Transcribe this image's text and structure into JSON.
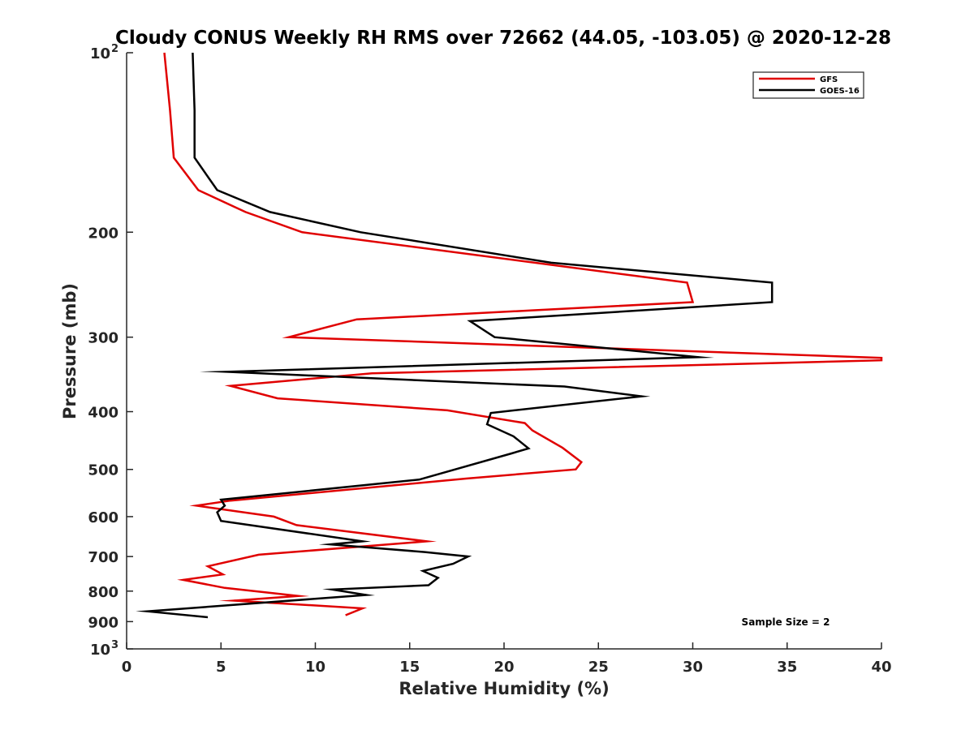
{
  "chart_data": {
    "type": "line",
    "title": "Cloudy CONUS Weekly RH RMS over 72662 (44.05, -103.05) @ 2020-12-28",
    "xlabel": "Relative Humidity (%)",
    "ylabel": "Pressure (mb)",
    "xlim": [
      0,
      40
    ],
    "ylim": [
      100,
      1000
    ],
    "y_scale": "log",
    "y_reversed": true,
    "grid": false,
    "legend_position": "top-right",
    "x_ticks": [
      {
        "value": 0,
        "label": "0"
      },
      {
        "value": 5,
        "label": "5"
      },
      {
        "value": 10,
        "label": "10"
      },
      {
        "value": 15,
        "label": "15"
      },
      {
        "value": 20,
        "label": "20"
      },
      {
        "value": 25,
        "label": "25"
      },
      {
        "value": 30,
        "label": "30"
      },
      {
        "value": 35,
        "label": "35"
      },
      {
        "value": 40,
        "label": "40"
      }
    ],
    "y_ticks": [
      {
        "value": 100,
        "label": "10",
        "sup": "2"
      },
      {
        "value": 200,
        "label": "200",
        "sup": ""
      },
      {
        "value": 300,
        "label": "300",
        "sup": ""
      },
      {
        "value": 400,
        "label": "400",
        "sup": ""
      },
      {
        "value": 500,
        "label": "500",
        "sup": ""
      },
      {
        "value": 600,
        "label": "600",
        "sup": ""
      },
      {
        "value": 700,
        "label": "700",
        "sup": ""
      },
      {
        "value": 800,
        "label": "800",
        "sup": ""
      },
      {
        "value": 900,
        "label": "900",
        "sup": ""
      },
      {
        "value": 1000,
        "label": "10",
        "sup": "3"
      }
    ],
    "series": [
      {
        "name": "GFS",
        "color": "#e00000",
        "points": [
          [
            2.0,
            100
          ],
          [
            2.3,
            125
          ],
          [
            2.5,
            150
          ],
          [
            3.8,
            170
          ],
          [
            6.3,
            185
          ],
          [
            9.3,
            200
          ],
          [
            29.7,
            243
          ],
          [
            30.0,
            262
          ],
          [
            12.2,
            280
          ],
          [
            8.6,
            300
          ],
          [
            40.0,
            325
          ],
          [
            40.0,
            328
          ],
          [
            13.0,
            345
          ],
          [
            5.5,
            362
          ],
          [
            8.0,
            380
          ],
          [
            17.0,
            398
          ],
          [
            21.1,
            418
          ],
          [
            21.5,
            430
          ],
          [
            23.1,
            460
          ],
          [
            24.1,
            486
          ],
          [
            23.8,
            500
          ],
          [
            18.0,
            518
          ],
          [
            5.5,
            564
          ],
          [
            3.7,
            575
          ],
          [
            7.8,
            600
          ],
          [
            9.0,
            620
          ],
          [
            15.9,
            660
          ],
          [
            7.0,
            695
          ],
          [
            4.3,
            727
          ],
          [
            5.1,
            750
          ],
          [
            3.0,
            766
          ],
          [
            5.2,
            790
          ],
          [
            9.1,
            815
          ],
          [
            5.7,
            830
          ],
          [
            12.5,
            855
          ],
          [
            11.6,
            878
          ]
        ]
      },
      {
        "name": "GOES-16",
        "color": "#000000",
        "points": [
          [
            3.5,
            100
          ],
          [
            3.6,
            125
          ],
          [
            3.6,
            150
          ],
          [
            4.8,
            170
          ],
          [
            7.6,
            185
          ],
          [
            12.4,
            200
          ],
          [
            22.5,
            225
          ],
          [
            34.2,
            243
          ],
          [
            34.2,
            262
          ],
          [
            18.2,
            282
          ],
          [
            19.5,
            300
          ],
          [
            30.3,
            324
          ],
          [
            5.3,
            343
          ],
          [
            16.0,
            355
          ],
          [
            23.2,
            363
          ],
          [
            27.3,
            377
          ],
          [
            19.3,
            402
          ],
          [
            19.1,
            420
          ],
          [
            20.5,
            440
          ],
          [
            21.3,
            461
          ],
          [
            20.4,
            470
          ],
          [
            15.5,
            520
          ],
          [
            5.0,
            562
          ],
          [
            5.2,
            575
          ],
          [
            4.8,
            590
          ],
          [
            5.0,
            610
          ],
          [
            12.5,
            660
          ],
          [
            10.8,
            668
          ],
          [
            15.8,
            688
          ],
          [
            18.1,
            700
          ],
          [
            17.3,
            720
          ],
          [
            15.7,
            740
          ],
          [
            16.5,
            760
          ],
          [
            16.0,
            782
          ],
          [
            10.9,
            795
          ],
          [
            12.7,
            812
          ],
          [
            1.1,
            865
          ],
          [
            4.3,
            885
          ]
        ]
      }
    ],
    "annotations": [
      {
        "text": "Sample Size = 2"
      }
    ]
  }
}
